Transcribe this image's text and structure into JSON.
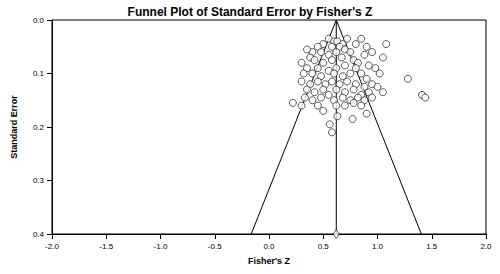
{
  "chart_data": {
    "type": "scatter",
    "title": "Funnel Plot of Standard Error by Fisher's Z",
    "x_label": "Fisher's Z",
    "y_label": "Standard Error",
    "xlim": [
      -2,
      2
    ],
    "xticks": [
      {
        "value": -2,
        "label": "-2.0"
      },
      -1.5,
      {
        "value": -1,
        "label": "-1.0"
      },
      -0.5,
      {
        "value": 0,
        "label": "0.0"
      },
      0.5,
      {
        "value": 1,
        "label": "1.0"
      },
      1.5,
      {
        "value": 2,
        "label": "2.0"
      }
    ],
    "ylim": [
      0,
      0.4
    ],
    "yticks": [
      {
        "value": 0,
        "label": "0.0"
      },
      0.1,
      0.2,
      0.3,
      0.4
    ],
    "grid": false,
    "series": [
      {
        "type": "scatter",
        "marker": "circle",
        "color": "#000000",
        "values": [
          [
            0.55,
            0.035
          ],
          [
            0.6,
            0.04
          ],
          [
            0.63,
            0.04
          ],
          [
            0.68,
            0.045
          ],
          [
            0.72,
            0.035
          ],
          [
            0.85,
            0.035
          ],
          [
            0.8,
            0.045
          ],
          [
            0.5,
            0.045
          ],
          [
            0.45,
            0.05
          ],
          [
            0.58,
            0.05
          ],
          [
            0.65,
            0.05
          ],
          [
            0.7,
            0.055
          ],
          [
            0.62,
            0.06
          ],
          [
            0.4,
            0.06
          ],
          [
            0.35,
            0.055
          ],
          [
            0.48,
            0.06
          ],
          [
            0.55,
            0.065
          ],
          [
            0.75,
            0.06
          ],
          [
            0.9,
            0.05
          ],
          [
            0.88,
            0.065
          ],
          [
            0.95,
            0.06
          ],
          [
            1.08,
            0.045
          ],
          [
            1.05,
            0.07
          ],
          [
            0.38,
            0.07
          ],
          [
            0.42,
            0.075
          ],
          [
            0.5,
            0.08
          ],
          [
            0.58,
            0.075
          ],
          [
            0.67,
            0.07
          ],
          [
            0.78,
            0.075
          ],
          [
            0.82,
            0.08
          ],
          [
            0.92,
            0.085
          ],
          [
            0.3,
            0.08
          ],
          [
            0.35,
            0.09
          ],
          [
            0.45,
            0.09
          ],
          [
            0.55,
            0.095
          ],
          [
            0.62,
            0.09
          ],
          [
            0.7,
            0.085
          ],
          [
            0.8,
            0.09
          ],
          [
            0.85,
            0.1
          ],
          [
            0.98,
            0.09
          ],
          [
            1.02,
            0.1
          ],
          [
            0.32,
            0.1
          ],
          [
            0.4,
            0.1
          ],
          [
            0.48,
            0.105
          ],
          [
            0.6,
            0.1
          ],
          [
            0.68,
            0.105
          ],
          [
            0.75,
            0.1
          ],
          [
            0.9,
            0.11
          ],
          [
            0.95,
            0.12
          ],
          [
            1.28,
            0.11
          ],
          [
            0.3,
            0.115
          ],
          [
            0.38,
            0.12
          ],
          [
            0.45,
            0.115
          ],
          [
            0.52,
            0.12
          ],
          [
            0.58,
            0.115
          ],
          [
            0.65,
            0.12
          ],
          [
            0.72,
            0.115
          ],
          [
            0.8,
            0.12
          ],
          [
            0.88,
            0.125
          ],
          [
            1.0,
            0.125
          ],
          [
            0.35,
            0.13
          ],
          [
            0.42,
            0.135
          ],
          [
            0.5,
            0.13
          ],
          [
            0.62,
            0.13
          ],
          [
            0.7,
            0.135
          ],
          [
            0.78,
            0.13
          ],
          [
            0.85,
            0.14
          ],
          [
            0.92,
            0.135
          ],
          [
            1.05,
            0.135
          ],
          [
            0.33,
            0.145
          ],
          [
            0.4,
            0.15
          ],
          [
            0.48,
            0.145
          ],
          [
            0.55,
            0.14
          ],
          [
            0.6,
            0.15
          ],
          [
            0.68,
            0.145
          ],
          [
            0.75,
            0.15
          ],
          [
            0.82,
            0.145
          ],
          [
            0.88,
            0.15
          ],
          [
            0.95,
            0.145
          ],
          [
            1.41,
            0.14
          ],
          [
            1.44,
            0.145
          ],
          [
            0.22,
            0.155
          ],
          [
            0.3,
            0.16
          ],
          [
            0.45,
            0.16
          ],
          [
            0.62,
            0.16
          ],
          [
            0.7,
            0.16
          ],
          [
            0.78,
            0.155
          ],
          [
            0.85,
            0.16
          ],
          [
            0.5,
            0.17
          ],
          [
            0.63,
            0.18
          ],
          [
            0.77,
            0.185
          ],
          [
            0.56,
            0.195
          ],
          [
            0.58,
            0.21
          ],
          [
            0.9,
            0.175
          ]
        ]
      },
      {
        "type": "line",
        "line_style": "solid",
        "color": "#000000",
        "values": [
          [
            0.62,
            0
          ],
          [
            -0.164,
            0.4
          ]
        ]
      },
      {
        "type": "line",
        "line_style": "solid",
        "color": "#000000",
        "values": [
          [
            0.62,
            0
          ],
          [
            1.404,
            0.4
          ]
        ]
      },
      {
        "type": "line",
        "line_style": "solid",
        "color": "#000000",
        "values": [
          [
            0.62,
            0
          ],
          [
            0.62,
            0.4
          ]
        ]
      },
      {
        "type": "scatter",
        "marker": "diamond",
        "color": "#000000",
        "values": [
          [
            0.62,
            0.4
          ]
        ]
      }
    ]
  }
}
